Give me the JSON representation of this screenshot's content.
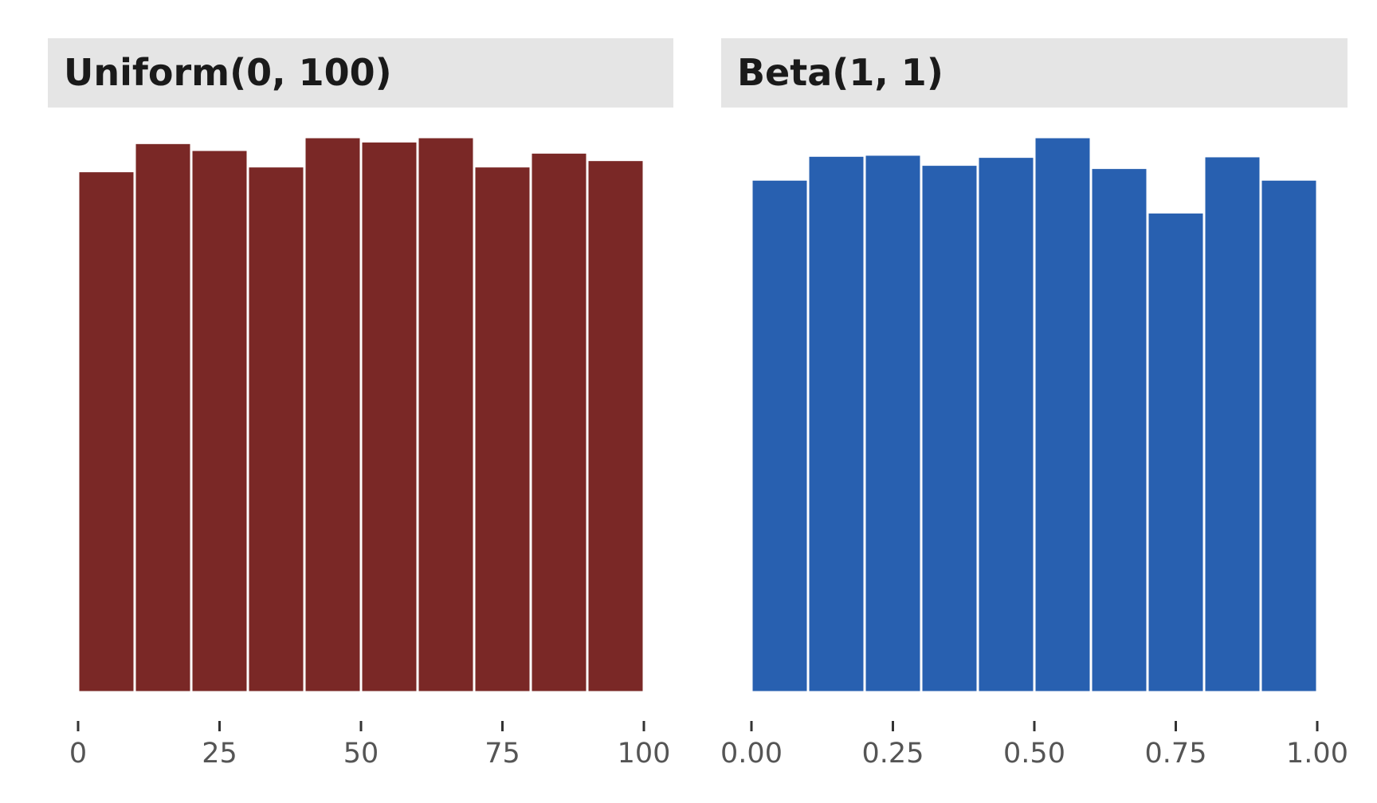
{
  "chart_data": [
    {
      "type": "bar",
      "title": "Uniform(0, 100)",
      "bin_edges": [
        0,
        10,
        20,
        30,
        40,
        50,
        60,
        70,
        80,
        90,
        100
      ],
      "values": [
        981,
        1034,
        1021,
        990,
        1045,
        1037,
        1045,
        990,
        1016,
        1002
      ],
      "xlim": [
        0,
        100
      ],
      "ylim": [
        0,
        1045
      ],
      "xticks": [
        0,
        25,
        50,
        75,
        100
      ],
      "xtick_labels": [
        "0",
        "25",
        "50",
        "75",
        "100"
      ],
      "xlabel": "",
      "ylabel": "",
      "color": "#7a2826",
      "grid": false
    },
    {
      "type": "bar",
      "title": "Beta(1, 1)",
      "bin_edges": [
        0,
        0.1,
        0.2,
        0.3,
        0.4,
        0.5,
        0.6,
        0.7,
        0.8,
        0.9,
        1.0
      ],
      "values": [
        967,
        1012,
        1014,
        995,
        1010,
        1047,
        989,
        905,
        1011,
        967
      ],
      "xlim": [
        0,
        1
      ],
      "ylim": [
        0,
        1047
      ],
      "xticks": [
        0,
        0.25,
        0.5,
        0.75,
        1.0
      ],
      "xtick_labels": [
        "0.00",
        "0.25",
        "0.50",
        "0.75",
        "1.00"
      ],
      "xlabel": "",
      "ylabel": "",
      "color": "#2860b0",
      "grid": false
    }
  ],
  "strip_color": "#e5e5e5",
  "tick_color": "#333333"
}
